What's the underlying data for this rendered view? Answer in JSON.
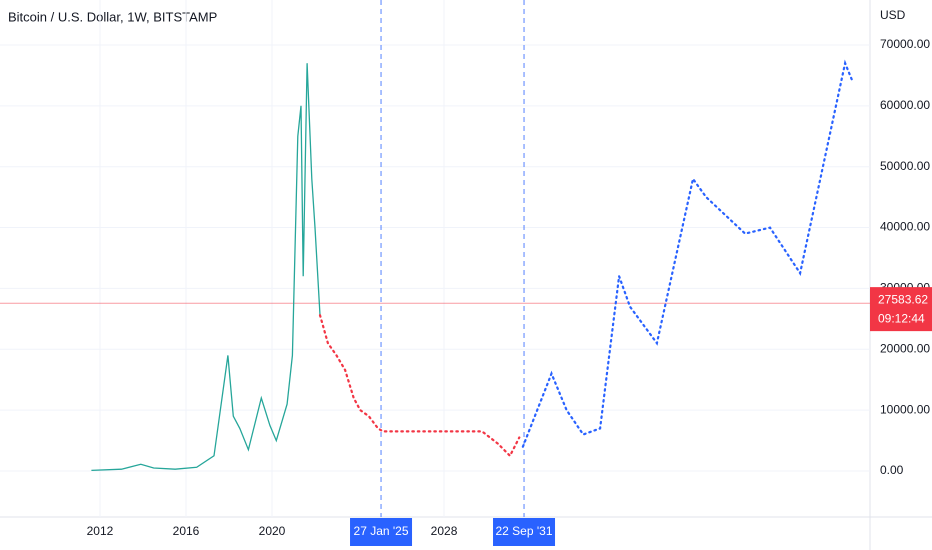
{
  "chart_data": {
    "type": "line",
    "title": "Bitcoin / U.S. Dollar, 1W, BITSTAMP",
    "currency": "USD",
    "xlim": [
      2007.35,
      2047.81
    ],
    "ylim": [
      -7558,
      77390
    ],
    "xticks": [
      2012,
      2016,
      2020,
      2028
    ],
    "yticks": [
      {
        "value": 0,
        "label": "0.00"
      },
      {
        "value": 10000,
        "label": "10000.00"
      },
      {
        "value": 20000,
        "label": "20000.00"
      },
      {
        "value": 30000,
        "label": "30000.00"
      },
      {
        "value": 40000,
        "label": "40000.00"
      },
      {
        "value": 50000,
        "label": "50000.00"
      },
      {
        "value": 60000,
        "label": "60000.00"
      },
      {
        "value": 70000,
        "label": "70000.00"
      }
    ],
    "grid": true,
    "series": [
      {
        "color": "#26a69a",
        "style": "solid",
        "x": [
          2011.6,
          2013.0,
          2013.9,
          2014.5,
          2015.5,
          2016.5,
          2017.3,
          2017.95,
          2018.2,
          2018.5,
          2018.9,
          2019.5,
          2019.9,
          2020.2,
          2020.7,
          2020.95,
          2021.2,
          2021.35,
          2021.45,
          2021.63,
          2021.85,
          2022.0,
          2022.23
        ],
        "values": [
          100,
          300,
          1100,
          500,
          300,
          600,
          2500,
          19000,
          9000,
          7000,
          3500,
          12000,
          7500,
          5000,
          11000,
          19000,
          55000,
          60000,
          32000,
          67000,
          48000,
          40000,
          25600
        ]
      },
      {
        "color": "#f23645",
        "style": "dotted",
        "x": [
          2022.23,
          2022.6,
          2023.0,
          2023.4,
          2023.8,
          2024.1,
          2024.5,
          2024.93,
          2025.16,
          2027.0,
          2029.0,
          2029.77,
          2030.5,
          2031.07,
          2031.5
        ],
        "values": [
          25600,
          21000,
          19000,
          16600,
          12000,
          10000,
          9000,
          7000,
          6500,
          6500,
          6500,
          6500,
          4500,
          2500,
          5500
        ]
      },
      {
        "color": "#2962ff",
        "style": "dotted",
        "x": [
          2031.67,
          2033.0,
          2033.7,
          2034.47,
          2035.26,
          2036.14,
          2036.65,
          2037.9,
          2039.58,
          2040.19,
          2042.0,
          2043.16,
          2044.56,
          2046.65,
          2047.0
        ],
        "values": [
          4000,
          16000,
          10000,
          6000,
          7000,
          32000,
          27000,
          21000,
          48000,
          45000,
          39000,
          40000,
          32500,
          67000,
          64000
        ]
      }
    ],
    "markers": [
      {
        "x": 2025.07,
        "label": "27 Jan '25"
      },
      {
        "x": 2031.72,
        "label": "22 Sep '31"
      }
    ],
    "last_price": {
      "value": 27583.62,
      "countdown": "09:12:44"
    }
  }
}
